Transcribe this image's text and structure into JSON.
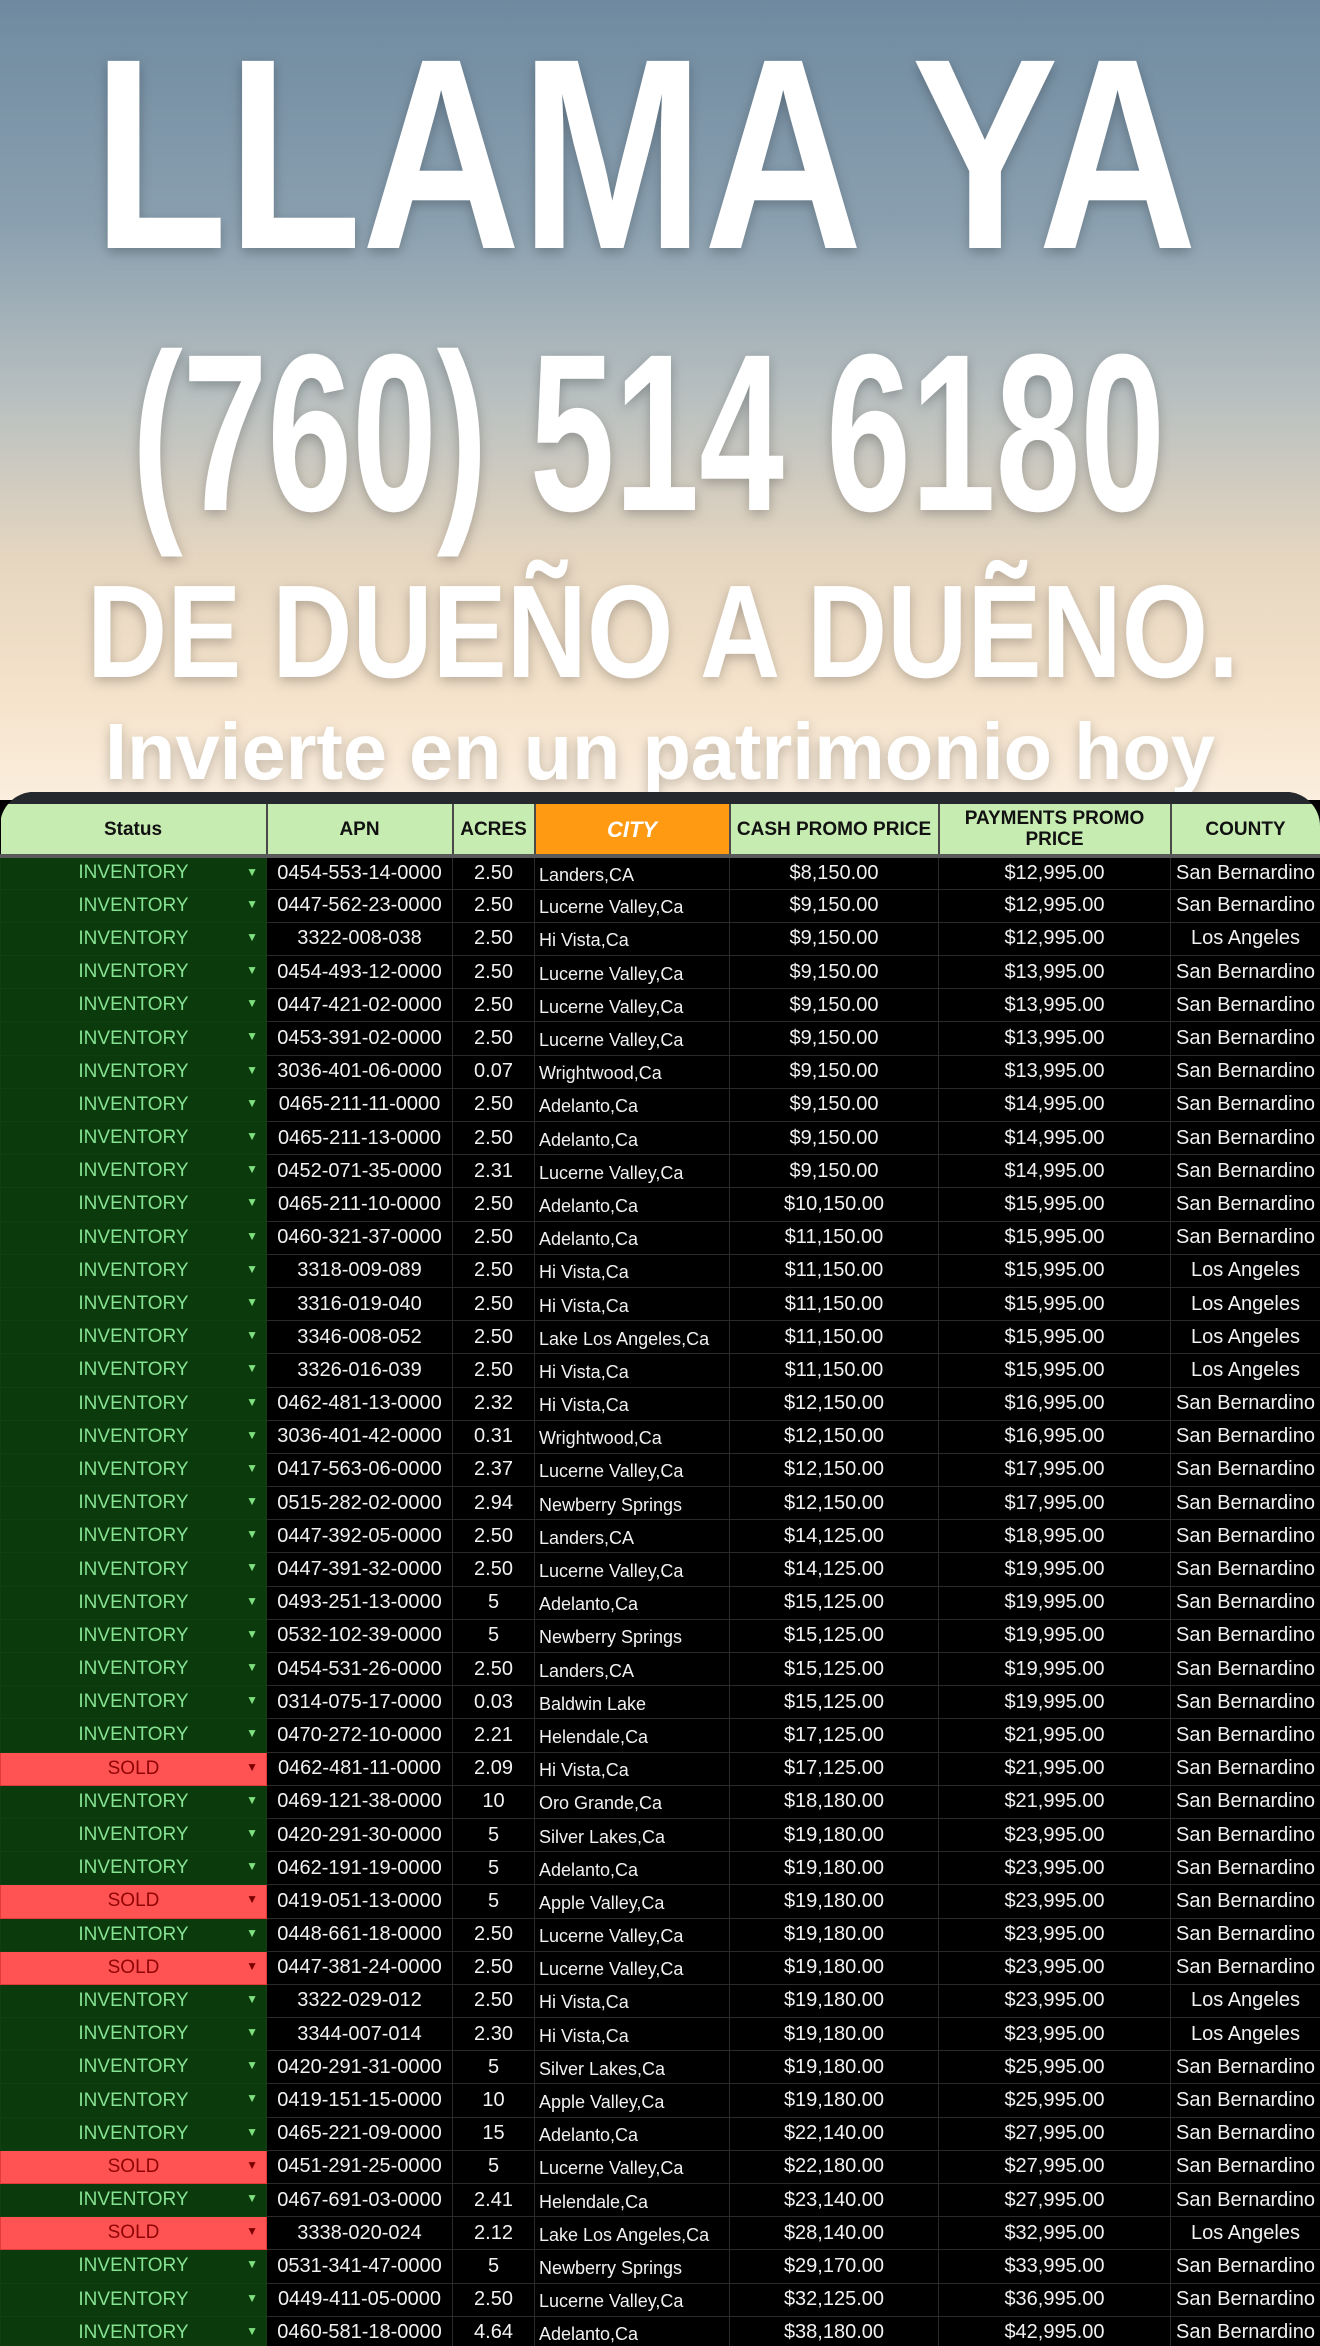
{
  "banner": {
    "line1": "LLAMA YA",
    "line2": "(760) 514 6180",
    "line3": "DE DUEÑO A DUẼNO.",
    "line4": "Invierte en un patrimonio hoy"
  },
  "colors": {
    "inventory_bg": "#0b3a0d",
    "inventory_text": "#86e392",
    "sold_bg": "#ff5252",
    "sold_text": "#8f0505",
    "header_bg": "#c7ecb2",
    "city_header_bg": "#ff9a12"
  },
  "table": {
    "headers": [
      "Status",
      "APN",
      "ACRES",
      "CITY",
      "CASH PROMO PRICE",
      "PAYMENTS PROMO PRICE",
      "COUNTY"
    ],
    "rows": [
      [
        "INVENTORY",
        "0454-553-14-0000",
        "2.50",
        "Landers,CA",
        "$8,150.00",
        "$12,995.00",
        "San Bernardino"
      ],
      [
        "INVENTORY",
        "0447-562-23-0000",
        "2.50",
        "Lucerne Valley,Ca",
        "$9,150.00",
        "$12,995.00",
        "San Bernardino"
      ],
      [
        "INVENTORY",
        "3322-008-038",
        "2.50",
        "Hi Vista,Ca",
        "$9,150.00",
        "$12,995.00",
        "Los Angeles"
      ],
      [
        "INVENTORY",
        "0454-493-12-0000",
        "2.50",
        "Lucerne Valley,Ca",
        "$9,150.00",
        "$13,995.00",
        "San Bernardino"
      ],
      [
        "INVENTORY",
        "0447-421-02-0000",
        "2.50",
        "Lucerne Valley,Ca",
        "$9,150.00",
        "$13,995.00",
        "San Bernardino"
      ],
      [
        "INVENTORY",
        "0453-391-02-0000",
        "2.50",
        "Lucerne Valley,Ca",
        "$9,150.00",
        "$13,995.00",
        "San Bernardino"
      ],
      [
        "INVENTORY",
        "3036-401-06-0000",
        "0.07",
        "Wrightwood,Ca",
        "$9,150.00",
        "$13,995.00",
        "San Bernardino"
      ],
      [
        "INVENTORY",
        "0465-211-11-0000",
        "2.50",
        "Adelanto,Ca",
        "$9,150.00",
        "$14,995.00",
        "San Bernardino"
      ],
      [
        "INVENTORY",
        "0465-211-13-0000",
        "2.50",
        "Adelanto,Ca",
        "$9,150.00",
        "$14,995.00",
        "San Bernardino"
      ],
      [
        "INVENTORY",
        "0452-071-35-0000",
        "2.31",
        "Lucerne Valley,Ca",
        "$9,150.00",
        "$14,995.00",
        "San Bernardino"
      ],
      [
        "INVENTORY",
        "0465-211-10-0000",
        "2.50",
        "Adelanto,Ca",
        "$10,150.00",
        "$15,995.00",
        "San Bernardino"
      ],
      [
        "INVENTORY",
        "0460-321-37-0000",
        "2.50",
        "Adelanto,Ca",
        "$11,150.00",
        "$15,995.00",
        "San Bernardino"
      ],
      [
        "INVENTORY",
        "3318-009-089",
        "2.50",
        "Hi Vista,Ca",
        "$11,150.00",
        "$15,995.00",
        "Los Angeles"
      ],
      [
        "INVENTORY",
        "3316-019-040",
        "2.50",
        "Hi Vista,Ca",
        "$11,150.00",
        "$15,995.00",
        "Los Angeles"
      ],
      [
        "INVENTORY",
        "3346-008-052",
        "2.50",
        "Lake Los Angeles,Ca",
        "$11,150.00",
        "$15,995.00",
        "Los Angeles"
      ],
      [
        "INVENTORY",
        "3326-016-039",
        "2.50",
        "Hi Vista,Ca",
        "$11,150.00",
        "$15,995.00",
        "Los Angeles"
      ],
      [
        "INVENTORY",
        "0462-481-13-0000",
        "2.32",
        "Hi Vista,Ca",
        "$12,150.00",
        "$16,995.00",
        "San Bernardino"
      ],
      [
        "INVENTORY",
        "3036-401-42-0000",
        "0.31",
        "Wrightwood,Ca",
        "$12,150.00",
        "$16,995.00",
        "San Bernardino"
      ],
      [
        "INVENTORY",
        "0417-563-06-0000",
        "2.37",
        "Lucerne Valley,Ca",
        "$12,150.00",
        "$17,995.00",
        "San Bernardino"
      ],
      [
        "INVENTORY",
        "0515-282-02-0000",
        "2.94",
        "Newberry Springs",
        "$12,150.00",
        "$17,995.00",
        "San Bernardino"
      ],
      [
        "INVENTORY",
        "0447-392-05-0000",
        "2.50",
        "Landers,CA",
        "$14,125.00",
        "$18,995.00",
        "San Bernardino"
      ],
      [
        "INVENTORY",
        "0447-391-32-0000",
        "2.50",
        "Lucerne Valley,Ca",
        "$14,125.00",
        "$19,995.00",
        "San Bernardino"
      ],
      [
        "INVENTORY",
        "0493-251-13-0000",
        "5",
        "Adelanto,Ca",
        "$15,125.00",
        "$19,995.00",
        "San Bernardino"
      ],
      [
        "INVENTORY",
        "0532-102-39-0000",
        "5",
        "Newberry Springs",
        "$15,125.00",
        "$19,995.00",
        "San Bernardino"
      ],
      [
        "INVENTORY",
        "0454-531-26-0000",
        "2.50",
        "Landers,CA",
        "$15,125.00",
        "$19,995.00",
        "San Bernardino"
      ],
      [
        "INVENTORY",
        "0314-075-17-0000",
        "0.03",
        "Baldwin Lake",
        "$15,125.00",
        "$19,995.00",
        "San Bernardino"
      ],
      [
        "INVENTORY",
        "0470-272-10-0000",
        "2.21",
        "Helendale,Ca",
        "$17,125.00",
        "$21,995.00",
        "San Bernardino"
      ],
      [
        "SOLD",
        "0462-481-11-0000",
        "2.09",
        "Hi Vista,Ca",
        "$17,125.00",
        "$21,995.00",
        "San Bernardino"
      ],
      [
        "INVENTORY",
        "0469-121-38-0000",
        "10",
        "Oro Grande,Ca",
        "$18,180.00",
        "$21,995.00",
        "San Bernardino"
      ],
      [
        "INVENTORY",
        "0420-291-30-0000",
        "5",
        "Silver Lakes,Ca",
        "$19,180.00",
        "$23,995.00",
        "San Bernardino"
      ],
      [
        "INVENTORY",
        "0462-191-19-0000",
        "5",
        "Adelanto,Ca",
        "$19,180.00",
        "$23,995.00",
        "San Bernardino"
      ],
      [
        "SOLD",
        "0419-051-13-0000",
        "5",
        "Apple Valley,Ca",
        "$19,180.00",
        "$23,995.00",
        "San Bernardino"
      ],
      [
        "INVENTORY",
        "0448-661-18-0000",
        "2.50",
        "Lucerne Valley,Ca",
        "$19,180.00",
        "$23,995.00",
        "San Bernardino"
      ],
      [
        "SOLD",
        "0447-381-24-0000",
        "2.50",
        "Lucerne Valley,Ca",
        "$19,180.00",
        "$23,995.00",
        "San Bernardino"
      ],
      [
        "INVENTORY",
        "3322-029-012",
        "2.50",
        "Hi Vista,Ca",
        "$19,180.00",
        "$23,995.00",
        "Los Angeles"
      ],
      [
        "INVENTORY",
        "3344-007-014",
        "2.30",
        "Hi Vista,Ca",
        "$19,180.00",
        "$23,995.00",
        "Los Angeles"
      ],
      [
        "INVENTORY",
        "0420-291-31-0000",
        "5",
        "Silver Lakes,Ca",
        "$19,180.00",
        "$25,995.00",
        "San Bernardino"
      ],
      [
        "INVENTORY",
        "0419-151-15-0000",
        "10",
        "Apple Valley,Ca",
        "$19,180.00",
        "$25,995.00",
        "San Bernardino"
      ],
      [
        "INVENTORY",
        "0465-221-09-0000",
        "15",
        "Adelanto,Ca",
        "$22,140.00",
        "$27,995.00",
        "San Bernardino"
      ],
      [
        "SOLD",
        "0451-291-25-0000",
        "5",
        "Lucerne Valley,Ca",
        "$22,180.00",
        "$27,995.00",
        "San Bernardino"
      ],
      [
        "INVENTORY",
        "0467-691-03-0000",
        "2.41",
        "Helendale,Ca",
        "$23,140.00",
        "$27,995.00",
        "San Bernardino"
      ],
      [
        "SOLD",
        "3338-020-024",
        "2.12",
        "Lake Los Angeles,Ca",
        "$28,140.00",
        "$32,995.00",
        "Los Angeles"
      ],
      [
        "INVENTORY",
        "0531-341-47-0000",
        "5",
        "Newberry Springs",
        "$29,170.00",
        "$33,995.00",
        "San Bernardino"
      ],
      [
        "INVENTORY",
        "0449-411-05-0000",
        "2.50",
        "Lucerne Valley,Ca",
        "$32,125.00",
        "$36,995.00",
        "San Bernardino"
      ],
      [
        "INVENTORY",
        "0460-581-18-0000",
        "4.64",
        "Adelanto,Ca",
        "$38,180.00",
        "$42,995.00",
        "San Bernardino"
      ]
    ]
  }
}
